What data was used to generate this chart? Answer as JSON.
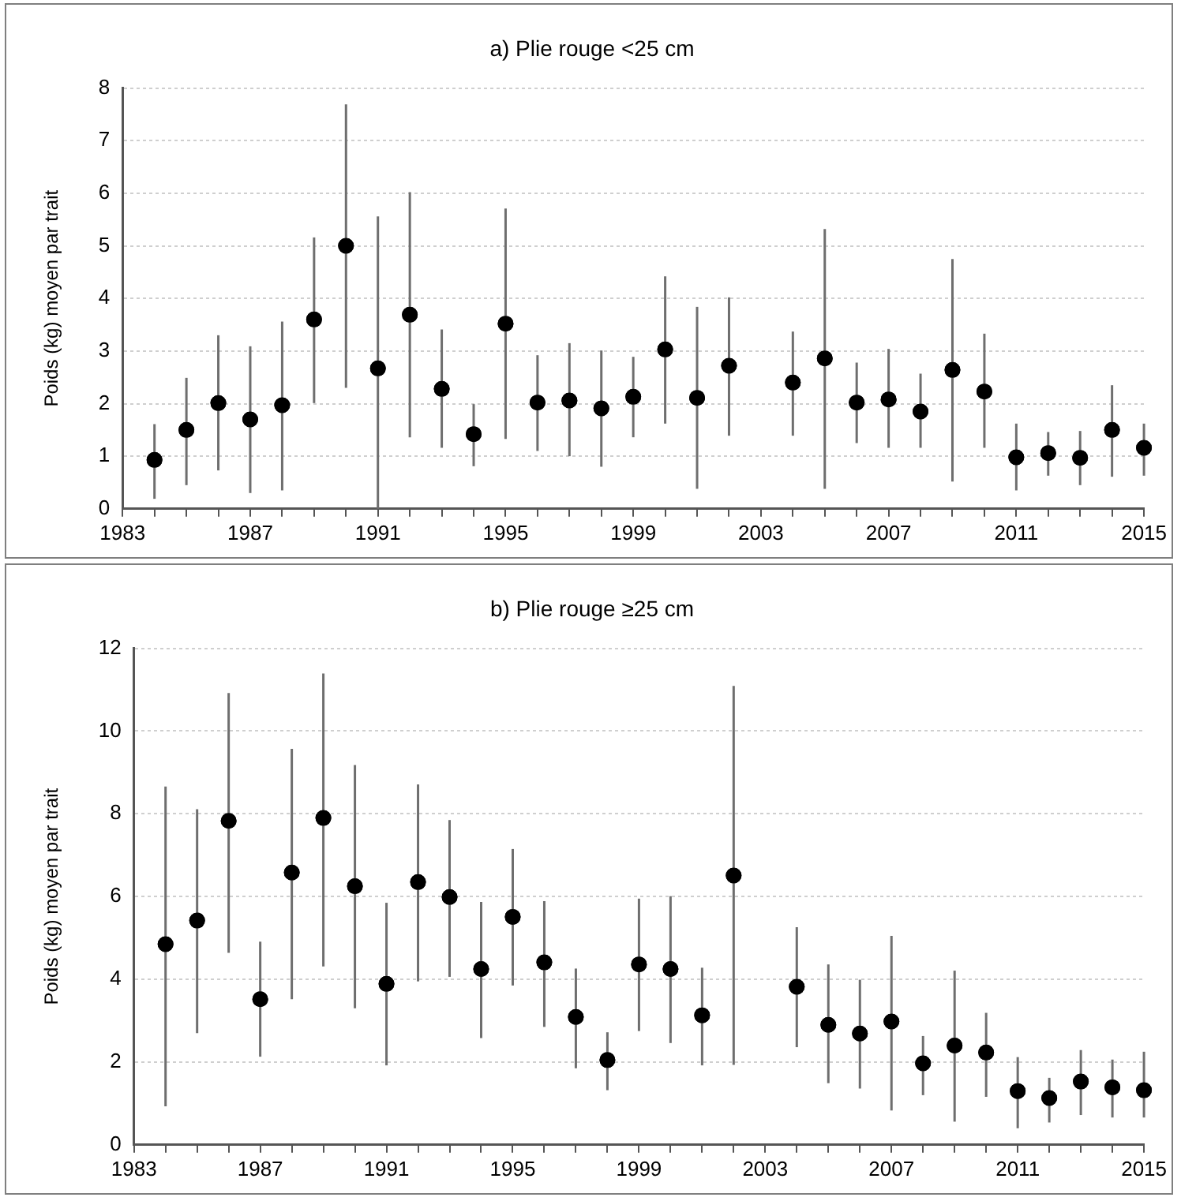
{
  "chart_data": [
    {
      "type": "scatter",
      "title": "a) Plie rouge <25 cm",
      "ylabel": "Poids (kg) moyen par trait",
      "color": "#000000",
      "marker": "circle",
      "grid": "y",
      "x": [
        1984,
        1985,
        1986,
        1987,
        1988,
        1989,
        1990,
        1991,
        1992,
        1993,
        1994,
        1995,
        1996,
        1997,
        1998,
        1999,
        2000,
        2001,
        2002,
        2004,
        2005,
        2006,
        2007,
        2008,
        2009,
        2010,
        2011,
        2012,
        2013,
        2014,
        2015
      ],
      "values": [
        0.93,
        1.5,
        2.01,
        1.7,
        1.97,
        3.6,
        5.0,
        2.67,
        3.69,
        2.28,
        1.42,
        3.52,
        2.02,
        2.06,
        1.91,
        2.13,
        3.03,
        2.11,
        2.72,
        2.4,
        2.86,
        2.02,
        2.08,
        1.85,
        2.64,
        2.23,
        0.98,
        1.06,
        0.97,
        1.5,
        1.16
      ],
      "errors": [
        [
          0.19,
          1.61
        ],
        [
          0.45,
          2.49
        ],
        [
          0.73,
          3.3
        ],
        [
          0.3,
          3.09
        ],
        [
          0.35,
          3.56
        ],
        [
          2.01,
          5.16
        ],
        [
          2.3,
          7.69
        ],
        [
          0,
          5.56
        ],
        [
          1.36,
          6.02
        ],
        [
          1.16,
          3.41
        ],
        [
          0.81,
          1.99
        ],
        [
          1.33,
          5.71
        ],
        [
          1.1,
          2.92
        ],
        [
          1.0,
          3.15
        ],
        [
          0.8,
          3.01
        ],
        [
          1.36,
          2.89
        ],
        [
          1.62,
          4.42
        ],
        [
          0.38,
          3.84
        ],
        [
          1.39,
          4.02
        ],
        [
          1.39,
          3.37
        ],
        [
          0.38,
          5.32
        ],
        [
          1.25,
          2.78
        ],
        [
          1.16,
          3.04
        ],
        [
          1.16,
          2.57
        ],
        [
          0.52,
          4.75
        ],
        [
          1.16,
          3.33
        ],
        [
          0.35,
          1.62
        ],
        [
          0.63,
          1.46
        ],
        [
          0.45,
          1.48
        ],
        [
          0.61,
          2.35
        ],
        [
          0.63,
          1.62
        ]
      ],
      "xlim": [
        1983,
        2015
      ],
      "xticks": [
        1983,
        {
          "value": 1984,
          "label": null
        },
        {
          "value": 1985,
          "label": null
        },
        {
          "value": 1986,
          "label": null
        },
        1987,
        {
          "value": 1988,
          "label": null
        },
        {
          "value": 1989,
          "label": null
        },
        {
          "value": 1990,
          "label": null
        },
        1991,
        {
          "value": 1992,
          "label": null
        },
        {
          "value": 1993,
          "label": null
        },
        {
          "value": 1994,
          "label": null
        },
        1995,
        {
          "value": 1996,
          "label": null
        },
        {
          "value": 1997,
          "label": null
        },
        {
          "value": 1998,
          "label": null
        },
        1999,
        {
          "value": 2000,
          "label": null
        },
        {
          "value": 2001,
          "label": null
        },
        {
          "value": 2002,
          "label": null
        },
        2003,
        {
          "value": 2004,
          "label": null
        },
        {
          "value": 2005,
          "label": null
        },
        {
          "value": 2006,
          "label": null
        },
        2007,
        {
          "value": 2008,
          "label": null
        },
        {
          "value": 2009,
          "label": null
        },
        {
          "value": 2010,
          "label": null
        },
        2011,
        {
          "value": 2012,
          "label": null
        },
        {
          "value": 2013,
          "label": null
        },
        {
          "value": 2014,
          "label": null
        },
        2015
      ],
      "ylim": [
        0,
        8
      ],
      "yticks": [
        0,
        1,
        2,
        3,
        4,
        5,
        6,
        7,
        8
      ]
    },
    {
      "type": "scatter",
      "title": "b) Plie rouge ≥25 cm",
      "ylabel": "Poids (kg) moyen par trait",
      "color": "#000000",
      "marker": "circle",
      "grid": "y",
      "x": [
        1984,
        1985,
        1986,
        1987,
        1988,
        1989,
        1990,
        1991,
        1992,
        1993,
        1994,
        1995,
        1996,
        1997,
        1998,
        1999,
        2000,
        2001,
        2002,
        2004,
        2005,
        2006,
        2007,
        2008,
        2009,
        2010,
        2011,
        2012,
        2013,
        2014,
        2015
      ],
      "values": [
        4.85,
        5.42,
        7.83,
        3.52,
        6.58,
        7.9,
        6.25,
        3.89,
        6.35,
        5.99,
        4.25,
        5.51,
        4.41,
        3.09,
        2.05,
        4.36,
        4.25,
        3.13,
        6.51,
        3.82,
        2.9,
        2.69,
        2.98,
        1.97,
        2.4,
        2.23,
        1.3,
        1.13,
        1.53,
        1.39,
        1.32
      ],
      "errors": [
        [
          0.93,
          8.66
        ],
        [
          2.7,
          8.11
        ],
        [
          4.64,
          10.92
        ],
        [
          2.13,
          4.91
        ],
        [
          3.52,
          9.57
        ],
        [
          4.31,
          11.39
        ],
        [
          3.3,
          9.18
        ],
        [
          1.92,
          5.85
        ],
        [
          3.95,
          8.71
        ],
        [
          4.06,
          7.85
        ],
        [
          2.58,
          5.87
        ],
        [
          3.85,
          7.15
        ],
        [
          2.85,
          5.89
        ],
        [
          1.85,
          4.26
        ],
        [
          1.32,
          2.72
        ],
        [
          2.75,
          5.95
        ],
        [
          2.46,
          6.01
        ],
        [
          1.92,
          4.28
        ],
        [
          1.93,
          11.09
        ],
        [
          2.36,
          5.26
        ],
        [
          1.49,
          4.36
        ],
        [
          1.36,
          3.99
        ],
        [
          0.83,
          5.05
        ],
        [
          1.2,
          2.63
        ],
        [
          0.56,
          4.21
        ],
        [
          1.16,
          3.19
        ],
        [
          0.4,
          2.12
        ],
        [
          0.54,
          1.62
        ],
        [
          0.72,
          2.29
        ],
        [
          0.66,
          2.06
        ],
        [
          0.66,
          2.25
        ]
      ],
      "xlim": [
        1983,
        2015
      ],
      "xticks": [
        1983,
        {
          "value": 1984,
          "label": null
        },
        {
          "value": 1985,
          "label": null
        },
        {
          "value": 1986,
          "label": null
        },
        1987,
        {
          "value": 1988,
          "label": null
        },
        {
          "value": 1989,
          "label": null
        },
        {
          "value": 1990,
          "label": null
        },
        1991,
        {
          "value": 1992,
          "label": null
        },
        {
          "value": 1993,
          "label": null
        },
        {
          "value": 1994,
          "label": null
        },
        1995,
        {
          "value": 1996,
          "label": null
        },
        {
          "value": 1997,
          "label": null
        },
        {
          "value": 1998,
          "label": null
        },
        1999,
        {
          "value": 2000,
          "label": null
        },
        {
          "value": 2001,
          "label": null
        },
        {
          "value": 2002,
          "label": null
        },
        2003,
        {
          "value": 2004,
          "label": null
        },
        {
          "value": 2005,
          "label": null
        },
        {
          "value": 2006,
          "label": null
        },
        2007,
        {
          "value": 2008,
          "label": null
        },
        {
          "value": 2009,
          "label": null
        },
        {
          "value": 2010,
          "label": null
        },
        2011,
        {
          "value": 2012,
          "label": null
        },
        {
          "value": 2013,
          "label": null
        },
        {
          "value": 2014,
          "label": null
        },
        2015
      ],
      "ylim": [
        0,
        12
      ],
      "yticks": [
        0,
        2,
        4,
        6,
        8,
        10,
        12
      ]
    }
  ]
}
